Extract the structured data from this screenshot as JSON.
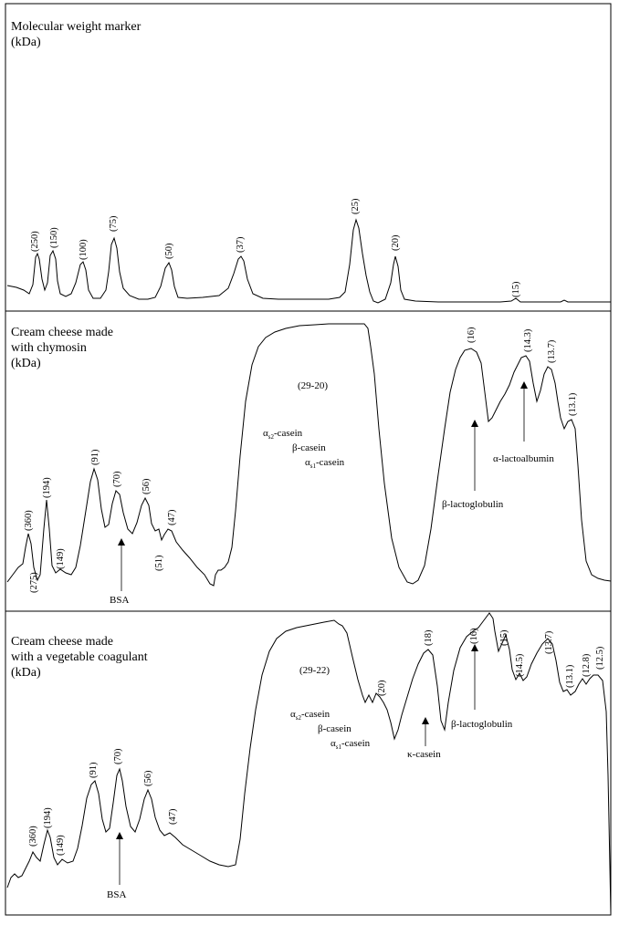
{
  "chart_data": [
    {
      "type": "line",
      "title_lines": [
        "Molecular weight marker",
        "(kDa)"
      ],
      "peaks": [
        {
          "label": "(250)"
        },
        {
          "label": "(150)"
        },
        {
          "label": "(100)"
        },
        {
          "label": "(75)"
        },
        {
          "label": "(50)"
        },
        {
          "label": "(37)"
        },
        {
          "label": "(25)"
        },
        {
          "label": "(20)"
        },
        {
          "label": "(15)"
        }
      ],
      "annotations": []
    },
    {
      "type": "line",
      "title_lines": [
        "Cream cheese made",
        "with chymosin",
        "(kDa)"
      ],
      "peaks": [
        {
          "label": "(360)"
        },
        {
          "label": "(275)"
        },
        {
          "label": "(194)"
        },
        {
          "label": "(149)"
        },
        {
          "label": "(91)"
        },
        {
          "label": "(70)"
        },
        {
          "label": "(56)"
        },
        {
          "label": "(51)"
        },
        {
          "label": "(47)"
        },
        {
          "label": "(16)"
        },
        {
          "label": "(14.3)"
        },
        {
          "label": "(13.7)"
        },
        {
          "label": "(13.1)"
        }
      ],
      "range_label": "(29-20)",
      "casein_labels": [
        "αs2-casein",
        "β-casein",
        "αs1-casein"
      ],
      "annotations": [
        {
          "label": "BSA"
        },
        {
          "label": "β-lactoglobulin"
        },
        {
          "label": "α-lactoalbumin"
        }
      ]
    },
    {
      "type": "line",
      "title_lines": [
        "Cream cheese made",
        "with a vegetable coagulant",
        "(kDa)"
      ],
      "peaks": [
        {
          "label": "(360)"
        },
        {
          "label": "(194)"
        },
        {
          "label": "(149)"
        },
        {
          "label": "(91)"
        },
        {
          "label": "(70)"
        },
        {
          "label": "(56)"
        },
        {
          "label": "(47)"
        },
        {
          "label": "(20)"
        },
        {
          "label": "(18)"
        },
        {
          "label": "(16)"
        },
        {
          "label": "(15)"
        },
        {
          "label": "(14.5)"
        },
        {
          "label": "(13.7)"
        },
        {
          "label": "(13.1)"
        },
        {
          "label": "(12.8)"
        },
        {
          "label": "(12.5)"
        }
      ],
      "range_label": "(29-22)",
      "casein_labels": [
        "αs2-casein",
        "β-casein",
        "αs1-casein"
      ],
      "annotations": [
        {
          "label": "BSA"
        },
        {
          "label": "κ-casein"
        },
        {
          "label": "β-lactoglobulin"
        }
      ]
    }
  ]
}
